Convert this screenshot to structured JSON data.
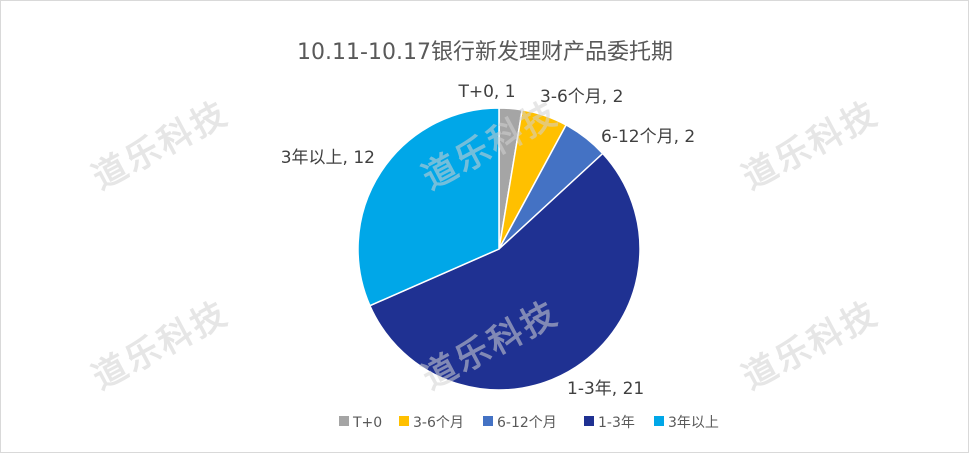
{
  "chart_data": {
    "type": "pie",
    "title": "10.11-10.17银行新发理财产品委托期",
    "categories": [
      "T+0",
      "3-6个月",
      "6-12个月",
      "1-3年",
      "3年以上"
    ],
    "values": [
      1,
      2,
      2,
      21,
      12
    ],
    "colors": [
      "#a5a5a5",
      "#ffc000",
      "#4472c4",
      "#1f3192",
      "#00a7e8"
    ],
    "data_labels": [
      "T+0, 1",
      "3-6个月, 2",
      "6-12个月, 2",
      "1-3年, 21",
      "3年以上, 12"
    ],
    "legend_position": "bottom",
    "start_angle_deg": 0,
    "direction": "clockwise"
  },
  "watermark": {
    "text": "道乐科技"
  }
}
